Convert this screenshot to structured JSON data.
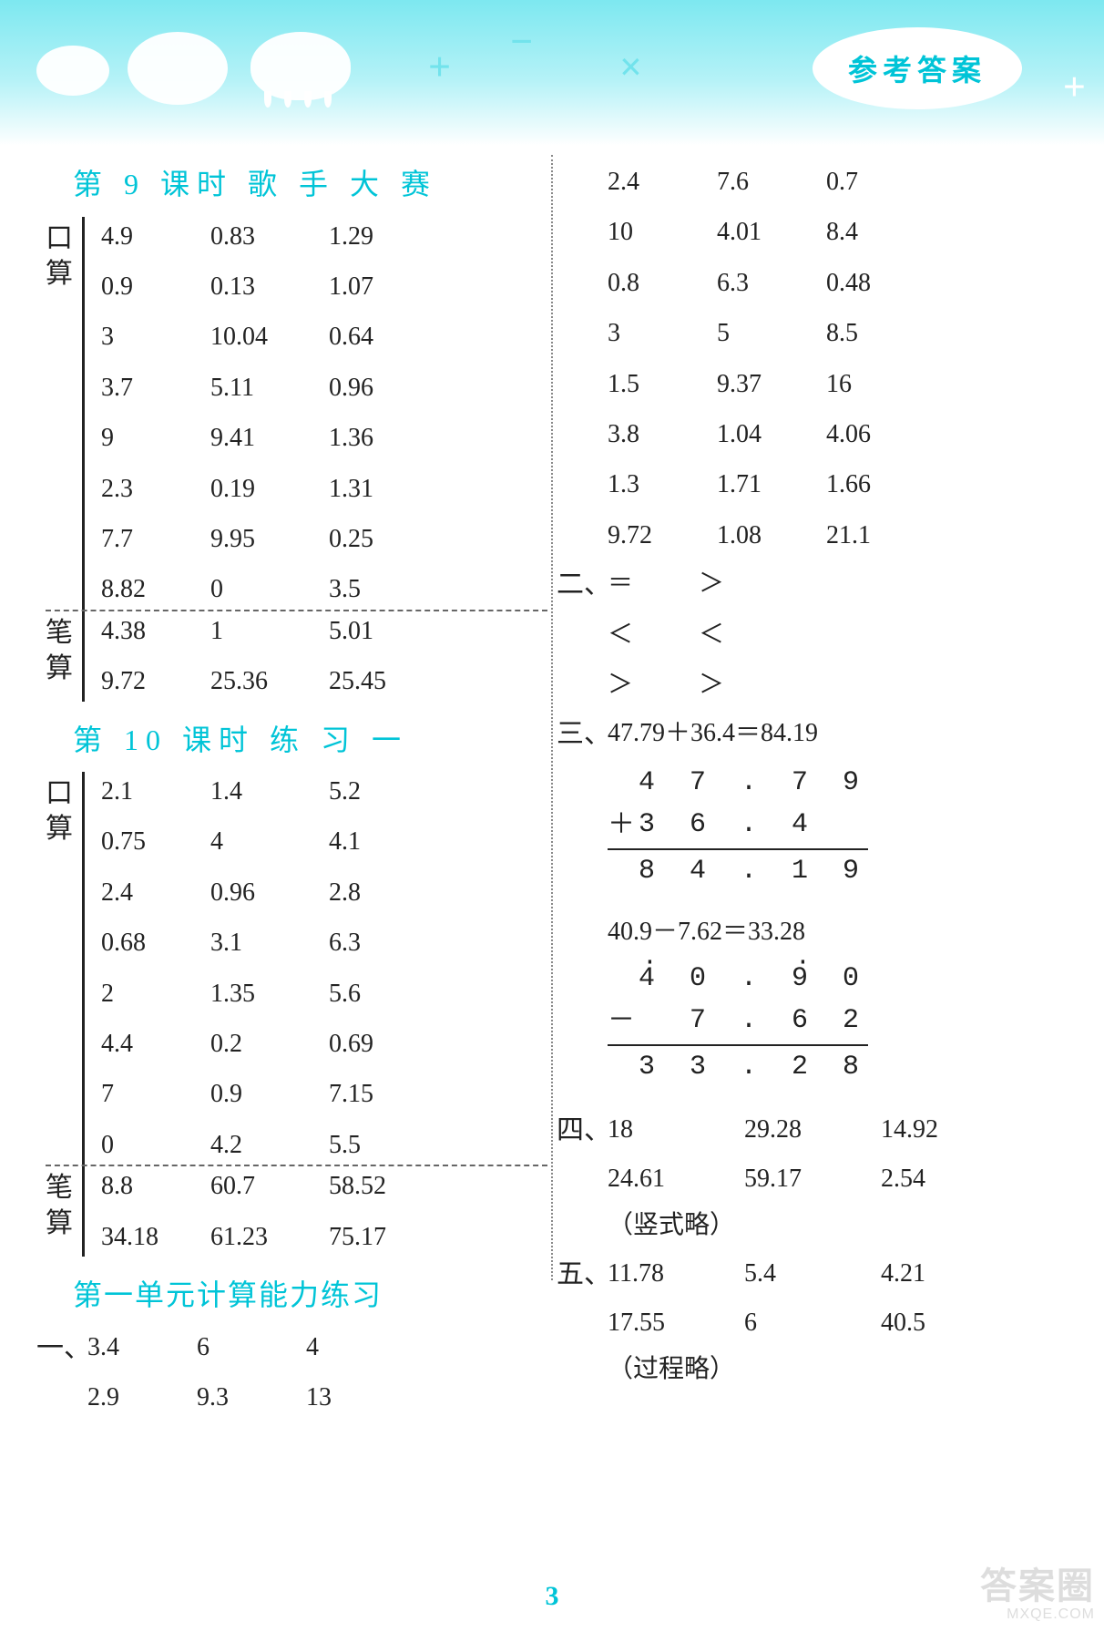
{
  "header": {
    "badge": "参考答案",
    "band_color": "#7de8f0",
    "accent_color": "#00c4d7"
  },
  "page_number": "3",
  "watermark": {
    "line1": "答案圈",
    "line2": "MXQE.COM"
  },
  "left": {
    "sec9": {
      "title": "第 9 课时   歌 手 大 赛",
      "kousuan_label": [
        "口",
        "算"
      ],
      "bisuan_label": [
        "笔",
        "算"
      ],
      "kousuan": [
        [
          "4.9",
          "0.83",
          "1.29"
        ],
        [
          "0.9",
          "0.13",
          "1.07"
        ],
        [
          "3",
          "10.04",
          "0.64"
        ],
        [
          "3.7",
          "5.11",
          "0.96"
        ],
        [
          "9",
          "9.41",
          "1.36"
        ],
        [
          "2.3",
          "0.19",
          "1.31"
        ],
        [
          "7.7",
          "9.95",
          "0.25"
        ],
        [
          "8.82",
          "0",
          "3.5"
        ]
      ],
      "bisuan": [
        [
          "4.38",
          "1",
          "5.01"
        ],
        [
          "9.72",
          "25.36",
          "25.45"
        ]
      ]
    },
    "sec10": {
      "title": "第 10 课时   练   习   一",
      "kousuan": [
        [
          "2.1",
          "1.4",
          "5.2"
        ],
        [
          "0.75",
          "4",
          "4.1"
        ],
        [
          "2.4",
          "0.96",
          "2.8"
        ],
        [
          "0.68",
          "3.1",
          "6.3"
        ],
        [
          "2",
          "1.35",
          "5.6"
        ],
        [
          "4.4",
          "0.2",
          "0.69"
        ],
        [
          "7",
          "0.9",
          "7.15"
        ],
        [
          "0",
          "4.2",
          "5.5"
        ]
      ],
      "bisuan": [
        [
          "8.8",
          "60.7",
          "58.52"
        ],
        [
          "34.18",
          "61.23",
          "75.17"
        ]
      ]
    },
    "unit": {
      "title": "第一单元计算能力练习",
      "q1_label": "一、",
      "q1": [
        [
          "3.4",
          "6",
          "4"
        ],
        [
          "2.9",
          "9.3",
          "13"
        ]
      ]
    }
  },
  "right": {
    "topgrid": [
      [
        "2.4",
        "7.6",
        "0.7"
      ],
      [
        "10",
        "4.01",
        "8.4"
      ],
      [
        "0.8",
        "6.3",
        "0.48"
      ],
      [
        "3",
        "5",
        "8.5"
      ],
      [
        "1.5",
        "9.37",
        "16"
      ],
      [
        "3.8",
        "1.04",
        "4.06"
      ],
      [
        "1.3",
        "1.71",
        "1.66"
      ],
      [
        "9.72",
        "1.08",
        "21.1"
      ]
    ],
    "q2_label": "二、",
    "q2": [
      [
        "＝",
        "＞"
      ],
      [
        "＜",
        "＜"
      ],
      [
        "＞",
        "＞"
      ]
    ],
    "q3_label": "三、",
    "q3_eq1": "47.79＋36.4＝84.19",
    "q3_calc1": {
      "a": "4 7 . 7 9",
      "op": "＋",
      "b": "3 6 . 4",
      "r": "8 4 . 1 9"
    },
    "q3_eq2": "40.9－7.62＝33.28",
    "q3_calc2": {
      "a": "4 0 . 9 0",
      "op": "－",
      "b": "7 . 6 2",
      "r": "3 3 . 2 8"
    },
    "q4_label": "四、",
    "q4": [
      [
        "18",
        "29.28",
        "14.92"
      ],
      [
        "24.61",
        "59.17",
        "2.54"
      ]
    ],
    "q4_note": "（竖式略）",
    "q5_label": "五、",
    "q5": [
      [
        "11.78",
        "5.4",
        "4.21"
      ],
      [
        "17.55",
        "6",
        "40.5"
      ]
    ],
    "q5_note": "（过程略）"
  }
}
